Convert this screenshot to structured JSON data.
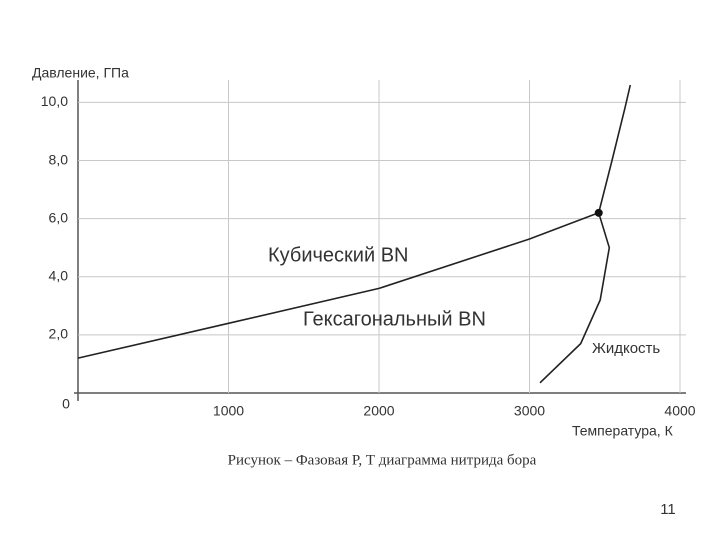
{
  "chart_data": {
    "type": "line",
    "y_label": "Давление, ГПа",
    "x_label": "Температура, К",
    "caption": "Рисунок – Фазовая Р, Т диаграмма нитрида бора",
    "annotations": [
      "Кубический BN",
      "Гексагональный BN",
      "Жидкость"
    ],
    "page_number": "11",
    "xlim": [
      0,
      4000
    ],
    "ylim": [
      0,
      10.6
    ],
    "xticks": [
      0,
      1000,
      2000,
      3000,
      4000
    ],
    "yticks": [
      {
        "value": 2,
        "label": "2,0"
      },
      {
        "value": 4,
        "label": "4,0"
      },
      {
        "value": 6,
        "label": "6,0"
      },
      {
        "value": 8,
        "label": "8,0"
      },
      {
        "value": 10,
        "label": "10,0"
      }
    ],
    "grid": true,
    "series": [
      {
        "color": "#222222",
        "x": [
          0,
          1000,
          2000,
          3000,
          3460
        ],
        "values": [
          1.2,
          2.4,
          3.6,
          5.3,
          6.2
        ]
      },
      {
        "color": "#222222",
        "x": [
          3460,
          3530,
          3470,
          3340,
          3070
        ],
        "values": [
          6.2,
          5.0,
          3.2,
          1.7,
          0.35
        ]
      },
      {
        "color": "#222222",
        "x": [
          3460,
          3548,
          3634,
          3670
        ],
        "values": [
          6.2,
          8.0,
          9.8,
          10.6
        ]
      }
    ],
    "triple_point": {
      "x": 3460,
      "y": 6.2
    }
  }
}
